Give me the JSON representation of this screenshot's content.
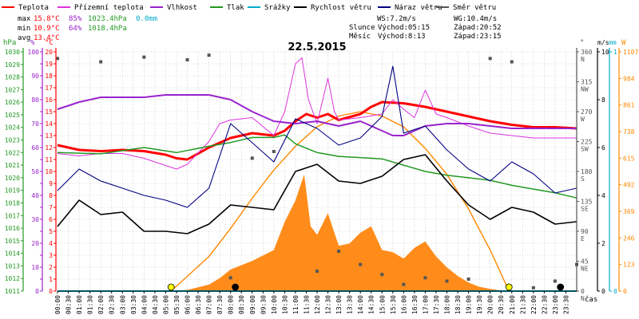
{
  "legend": [
    {
      "label": "Teplota",
      "color": "#ff0000"
    },
    {
      "label": "Přízemní teplota",
      "color": "#dd33dd"
    },
    {
      "label": "Vlhkost",
      "color": "#9922cc"
    },
    {
      "label": "Tlak",
      "color": "#229922"
    },
    {
      "label": "Srážky",
      "color": "#00aacc"
    },
    {
      "label": "Rychlost větru",
      "color": "#000000"
    },
    {
      "label": "Náraz větru",
      "color": "#000080"
    },
    {
      "label": "Směr větru",
      "color": "#555555"
    }
  ],
  "stats": {
    "max": {
      "label": "max",
      "temp": "15.8°C",
      "hum": "85%",
      "press": "1023.4hPa",
      "rain": "0.0mm"
    },
    "min": {
      "label": "min",
      "temp": "10.9°C",
      "hum": "64%",
      "press": "1018.4hPa"
    },
    "avg": {
      "label": "avg",
      "temp": "13.4°C"
    }
  },
  "wind_info": {
    "ws": "WS:7.2m/s",
    "wg": "WG:10.4m/s"
  },
  "sun_info": {
    "label": "Slunce",
    "rise": "Východ:05:15",
    "set": "Západ:20:52"
  },
  "moon_info": {
    "label": "Měsíc",
    "rise": "Východ:8:13",
    "set": "Západ:23:15"
  },
  "title": "22.5.2015",
  "axis_units": {
    "hpa": "hPa",
    "pct": "%",
    "temp": "°C",
    "dir": "°",
    "ms": "m/s",
    "mm": "mm",
    "w": "W",
    "time": "čas"
  },
  "colors": {
    "temp": "#ff0000",
    "ground": "#dd33dd",
    "hum": "#9922cc",
    "press": "#229922",
    "rain": "#00aacc",
    "wind": "#000000",
    "gust": "#000080",
    "dir": "#555555",
    "solar": "#ff8800",
    "solar_fill": "#ff8c1a",
    "grid": "#bbbbbb"
  },
  "chart_data": {
    "type": "line",
    "title": "22.5.2015",
    "x_ticks": [
      "00:00",
      "00:30",
      "01:00",
      "01:30",
      "02:00",
      "02:30",
      "03:00",
      "03:30",
      "04:00",
      "04:30",
      "05:00",
      "05:30",
      "06:00",
      "06:30",
      "07:00",
      "07:30",
      "08:00",
      "08:30",
      "09:00",
      "09:30",
      "10:00",
      "10:30",
      "11:00",
      "11:30",
      "12:00",
      "12:30",
      "13:00",
      "13:30",
      "14:00",
      "14:30",
      "15:00",
      "15:30",
      "16:00",
      "16:30",
      "17:00",
      "17:30",
      "18:00",
      "18:30",
      "19:00",
      "19:30",
      "20:00",
      "20:30",
      "21:00",
      "21:30",
      "22:00",
      "22:30",
      "23:00",
      "23:30"
    ],
    "axes": {
      "pressure": {
        "unit": "hPa",
        "range": [
          1011,
          1030
        ],
        "ticks": [
          1011,
          1012,
          1013,
          1014,
          1015,
          1016,
          1017,
          1018,
          1019,
          1020,
          1021,
          1022,
          1023,
          1024,
          1025,
          1026,
          1027,
          1028,
          1029,
          1030
        ]
      },
      "humidity": {
        "unit": "%",
        "range": [
          0,
          100
        ],
        "ticks": [
          0,
          5,
          10,
          15,
          20,
          25,
          30,
          35,
          40,
          45,
          50,
          55,
          60,
          65,
          70,
          75,
          80,
          85,
          90,
          95,
          100
        ]
      },
      "temperature": {
        "unit": "°C",
        "range": [
          0,
          20
        ],
        "ticks": [
          0,
          1,
          2,
          3,
          4,
          5,
          6,
          7,
          8,
          9,
          10,
          11,
          12,
          13,
          14,
          15,
          16,
          17,
          18,
          19,
          20
        ]
      },
      "direction": {
        "unit": "°",
        "range": [
          0,
          360
        ],
        "ticks": [
          0,
          45,
          90,
          135,
          180,
          225,
          270,
          315,
          360
        ],
        "labels": [
          "N",
          "NE",
          "E",
          "SE",
          "S",
          "SW",
          "W",
          "NW",
          "N"
        ]
      },
      "wind": {
        "unit": "m/s",
        "range": [
          0,
          10
        ],
        "ticks": [
          0,
          2,
          4,
          6,
          8,
          10
        ]
      },
      "rain": {
        "unit": "mm",
        "range": [
          0,
          1
        ],
        "ticks": [
          0,
          1
        ]
      },
      "solar": {
        "unit": "W",
        "range": [
          0,
          1107
        ],
        "ticks": [
          0,
          123,
          246,
          369,
          492,
          615,
          738,
          861,
          984,
          1107
        ]
      }
    },
    "series": [
      {
        "name": "Teplota",
        "unit": "°C",
        "x": [
          0,
          1,
          2,
          3,
          4,
          5,
          5.5,
          6,
          7,
          8,
          9,
          10,
          10.5,
          11,
          11.5,
          12,
          12.5,
          13,
          14,
          14.5,
          15,
          16,
          17,
          18,
          19,
          20,
          21,
          22,
          23,
          24
        ],
        "y": [
          12.2,
          11.8,
          11.7,
          11.8,
          11.7,
          11.4,
          11.1,
          11.0,
          12.0,
          12.8,
          13.2,
          13.0,
          13.4,
          14.2,
          14.8,
          14.5,
          14.8,
          14.3,
          14.8,
          15.4,
          15.8,
          15.7,
          15.4,
          15.0,
          14.6,
          14.2,
          13.9,
          13.7,
          13.7,
          13.6
        ]
      },
      {
        "name": "Přízemní teplota",
        "unit": "°C",
        "x": [
          0,
          1,
          2,
          3,
          4,
          5,
          5.5,
          6,
          7,
          7.5,
          8,
          9,
          10,
          10.5,
          11,
          11.3,
          11.6,
          12,
          12.5,
          12.8,
          13,
          14,
          15,
          15.5,
          16,
          16.5,
          17,
          17.5,
          18,
          19,
          20,
          21,
          22,
          23,
          24
        ],
        "y": [
          11.5,
          11.3,
          11.5,
          11.5,
          11.1,
          10.5,
          10.2,
          10.6,
          12.5,
          14.0,
          14.3,
          14.5,
          13.0,
          15.0,
          19.0,
          19.5,
          16.0,
          14.0,
          17.8,
          15.0,
          14.3,
          14.5,
          14.8,
          16.0,
          15.2,
          14.5,
          16.8,
          14.8,
          14.5,
          13.8,
          13.2,
          13.0,
          12.8,
          12.8,
          12.8
        ]
      },
      {
        "name": "Vlhkost",
        "unit": "%",
        "x": [
          0,
          1,
          2,
          3,
          4,
          5,
          6,
          7,
          8,
          9,
          10,
          11,
          12,
          13,
          14,
          15,
          15.5,
          16,
          17,
          18,
          19,
          20,
          21,
          22,
          23,
          24
        ],
        "y": [
          76,
          79,
          81,
          81,
          81,
          82,
          82,
          82,
          80,
          75,
          71,
          70,
          71,
          69,
          71,
          67,
          65,
          65,
          69,
          70,
          70,
          69,
          68,
          68,
          68,
          68
        ]
      },
      {
        "name": "Tlak",
        "unit": "hPa",
        "x": [
          0,
          2,
          4,
          5.5,
          7,
          8,
          9,
          10,
          10.5,
          11,
          12,
          13,
          14,
          15,
          16,
          17,
          18,
          19,
          20,
          21,
          22,
          23,
          24
        ],
        "y": [
          1022.0,
          1021.9,
          1022.4,
          1022.0,
          1022.5,
          1022.8,
          1023.2,
          1023.2,
          1023.4,
          1022.7,
          1022.0,
          1021.7,
          1021.6,
          1021.5,
          1021.0,
          1020.5,
          1020.2,
          1020.0,
          1019.8,
          1019.4,
          1019.1,
          1018.8,
          1018.4
        ]
      },
      {
        "name": "Srážky",
        "unit": "mm",
        "x": [
          0,
          24
        ],
        "y": [
          0.0,
          0.0
        ]
      },
      {
        "name": "Rychlost větru",
        "unit": "m/s",
        "x": [
          0,
          1,
          2,
          3,
          4,
          5,
          6,
          7,
          8,
          9,
          10,
          11,
          12,
          13,
          14,
          15,
          16,
          17,
          18,
          19,
          20,
          21,
          22,
          23,
          24
        ],
        "y": [
          2.7,
          3.8,
          3.2,
          3.3,
          2.5,
          2.5,
          2.4,
          2.8,
          3.6,
          3.5,
          3.4,
          5.0,
          5.3,
          4.6,
          4.5,
          4.8,
          5.5,
          5.7,
          4.6,
          3.6,
          3.0,
          3.5,
          3.3,
          2.8,
          2.9
        ]
      },
      {
        "name": "Náraz větru",
        "unit": "m/s",
        "x": [
          0,
          1,
          2,
          3,
          4,
          5,
          6,
          7,
          8,
          9,
          10,
          11,
          12,
          13,
          14,
          15,
          15.5,
          16,
          17,
          18,
          19,
          20,
          21,
          22,
          23,
          24
        ],
        "y": [
          4.2,
          5.1,
          4.6,
          4.3,
          4.0,
          3.8,
          3.5,
          4.3,
          7.0,
          6.2,
          5.4,
          7.2,
          6.8,
          6.1,
          6.4,
          7.3,
          9.4,
          6.6,
          6.9,
          5.9,
          5.1,
          4.6,
          5.4,
          4.9,
          4.1,
          4.3
        ]
      },
      {
        "name": "Směr větru",
        "unit": "°",
        "x": [
          0,
          2,
          4,
          6,
          7,
          8,
          9,
          10,
          12,
          13,
          14,
          15,
          16,
          17,
          18,
          19,
          20,
          21,
          22,
          23,
          24
        ],
        "y": [
          350,
          345,
          352,
          348,
          355,
          20,
          200,
          210,
          30,
          60,
          40,
          25,
          10,
          20,
          15,
          18,
          350,
          345,
          5,
          15,
          40
        ]
      }
    ],
    "solar": {
      "unit": "W",
      "x": [
        4.5,
        6,
        7,
        7.5,
        8,
        9,
        10,
        10.5,
        11,
        11.4,
        11.7,
        12,
        12.5,
        13,
        13.5,
        14,
        14.5,
        15,
        15.5,
        16,
        16.5,
        17,
        17.5,
        18,
        18.5,
        19,
        19.5,
        20,
        20.5,
        21
      ],
      "y": [
        0,
        5,
        30,
        60,
        100,
        140,
        190,
        320,
        420,
        540,
        300,
        260,
        360,
        210,
        220,
        270,
        300,
        190,
        180,
        150,
        200,
        230,
        160,
        110,
        70,
        40,
        20,
        10,
        3,
        0
      ]
    },
    "solar_max": {
      "unit": "W",
      "x": [
        5.25,
        7,
        8,
        9,
        10,
        11,
        12,
        13,
        14,
        15,
        16,
        17,
        18,
        19,
        20,
        20.87
      ],
      "y": [
        0,
        160,
        290,
        430,
        560,
        670,
        760,
        810,
        830,
        810,
        760,
        660,
        540,
        380,
        190,
        0
      ]
    },
    "markers": [
      {
        "type": "sunrise",
        "x": 5.25,
        "color": "#ffff00"
      },
      {
        "type": "moonrise",
        "x": 8.22,
        "color": "#000000"
      },
      {
        "type": "sunset",
        "x": 20.87,
        "color": "#ffff00"
      },
      {
        "type": "moonset",
        "x": 23.25,
        "color": "#000000"
      }
    ]
  }
}
